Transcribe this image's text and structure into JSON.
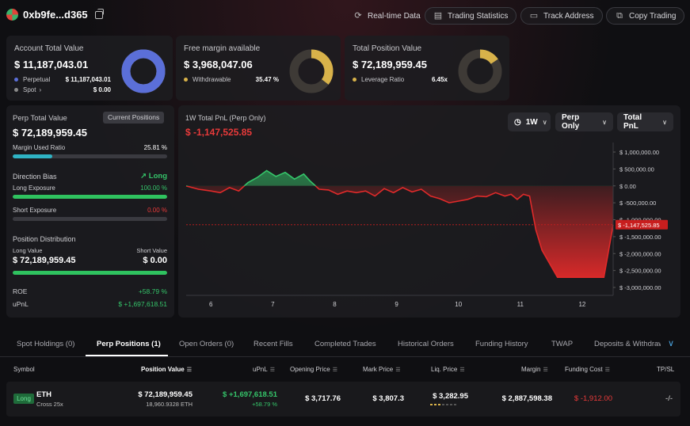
{
  "header": {
    "address": "0xb9fe...d365",
    "buttons": {
      "realtime": "Real-time Data",
      "trading_stats": "Trading Statistics",
      "track_address": "Track Address",
      "copy_trading": "Copy Trading"
    }
  },
  "account": {
    "title": "Account Total Value",
    "value": "$ 11,187,043.01",
    "perpetual_label": "Perpetual",
    "perpetual_value": "$ 11,187,043.01",
    "spot_label": "Spot",
    "spot_value": "$ 0.00",
    "perp_fraction": 1.0,
    "colors": {
      "perp": "#5b6fd8",
      "spot": "#8a8a8a"
    }
  },
  "margin": {
    "title": "Free margin available",
    "value": "$ 3,968,047.06",
    "withdrawable_label": "Withdrawable",
    "withdrawable_value": "35.47 %",
    "withdrawable_fraction": 0.3547,
    "colors": {
      "fill": "#d8b24a",
      "track": "#3e3a36"
    }
  },
  "position": {
    "title": "Total Position Value",
    "value": "$ 72,189,959.45",
    "leverage_label": "Leverage Ratio",
    "leverage_value": "6.45x",
    "ring_fraction": 0.155,
    "colors": {
      "fill": "#d8b24a",
      "track": "#3e3a36"
    }
  },
  "perp_panel": {
    "title": "Perp Total Value",
    "current_positions_btn": "Current Positions",
    "value": "$ 72,189,959.45",
    "margin_used_label": "Margin Used Ratio",
    "margin_used_value": "25.81 %",
    "margin_used_fraction": 0.2581,
    "direction_bias_label": "Direction Bias",
    "direction_bias_value": "Long",
    "long_exposure_label": "Long Exposure",
    "long_exposure_value": "100.00 %",
    "long_exposure_fraction": 1.0,
    "short_exposure_label": "Short Exposure",
    "short_exposure_value": "0.00 %",
    "short_exposure_fraction": 0.0,
    "distribution_label": "Position Distribution",
    "long_value_label": "Long Value",
    "short_value_label": "Short Value",
    "long_value": "$ 72,189,959.45",
    "short_value": "$ 0.00",
    "distribution_fraction": 1.0,
    "roe_label": "ROE",
    "roe_value": "+58.79 %",
    "upnl_label": "uPnL",
    "upnl_value": "$ +1,697,618.51",
    "colors": {
      "teal": "#2fb3c4",
      "green": "#2fc25f",
      "track": "#3a3a40"
    }
  },
  "chart_panel": {
    "title": "1W Total PnL (Perp Only)",
    "value": "$ -1,147,525.85",
    "dropdowns": {
      "period": "1W",
      "scope": "Perp Only",
      "metric": "Total PnL"
    }
  },
  "chart_data": {
    "type": "area",
    "x_ticks": [
      "6",
      "7",
      "8",
      "9",
      "10",
      "11",
      "12"
    ],
    "y_ticks": [
      "$ 1,000,000.00",
      "$ 500,000.00",
      "$ 0.00",
      "$ -500,000.00",
      "$ -1,000,000.00",
      "$ -1,500,000.00",
      "$ -2,000,000.00",
      "$ -2,500,000.00",
      "$ -3,000,000.00"
    ],
    "ylim": [
      -3000000,
      1000000
    ],
    "xlim": [
      5.6,
      12.5
    ],
    "current_label": "$ -1,147,525.85",
    "current_value": -1147525.85,
    "colors": {
      "positive": "#35c56a",
      "negative": "#e02a2a",
      "marker": "#c81e1e"
    },
    "x": [
      5.6,
      5.8,
      6.0,
      6.15,
      6.3,
      6.45,
      6.6,
      6.75,
      6.9,
      7.05,
      7.2,
      7.35,
      7.5,
      7.6,
      7.75,
      7.9,
      8.05,
      8.2,
      8.35,
      8.5,
      8.65,
      8.8,
      8.95,
      9.1,
      9.25,
      9.4,
      9.55,
      9.7,
      9.85,
      10.0,
      10.15,
      10.3,
      10.45,
      10.6,
      10.75,
      10.85,
      10.95,
      11.05,
      11.15,
      11.25,
      11.35,
      11.6,
      11.85,
      12.05,
      12.2,
      12.35,
      12.5
    ],
    "y": [
      0,
      -100000,
      -150000,
      -200000,
      -50000,
      -150000,
      100000,
      250000,
      450000,
      280000,
      400000,
      200000,
      350000,
      150000,
      -100000,
      -120000,
      -250000,
      -150000,
      -200000,
      -150000,
      -300000,
      -80000,
      -200000,
      -50000,
      -180000,
      -100000,
      -300000,
      -380000,
      -500000,
      -450000,
      -400000,
      -300000,
      -320000,
      -200000,
      -300000,
      -250000,
      -400000,
      -250000,
      -300000,
      -1300000,
      -1900000,
      -2700000,
      -2700000,
      -2700000,
      -2700000,
      -2700000,
      -1150000
    ]
  },
  "tabs": [
    "Spot Holdings (0)",
    "Perp Positions (1)",
    "Open Orders (0)",
    "Recent Fills",
    "Completed Trades",
    "Historical Orders",
    "Funding History",
    "TWAP",
    "Deposits & Withdraw"
  ],
  "table": {
    "headers": {
      "symbol": "Symbol",
      "position_value": "Position Value",
      "upnl": "uPnL",
      "opening_price": "Opening Price",
      "mark_price": "Mark Price",
      "liq_price": "Liq. Price",
      "margin": "Margin",
      "funding_cost": "Funding Cost",
      "tpsl": "TP/SL"
    },
    "row": {
      "side": "Long",
      "symbol": "ETH",
      "leverage": "Cross 25x",
      "position_value": "$ 72,189,959.45",
      "position_size": "18,960.9328 ETH",
      "upnl": "$ +1,697,618.51",
      "upnl_pct": "+58.79 %",
      "opening_price": "$ 3,717.76",
      "mark_price": "$ 3,807.3",
      "liq_price": "$ 3,282.95",
      "margin": "$ 2,887,598.38",
      "funding_cost": "$ -1,912.00",
      "tpsl": "-/-"
    }
  }
}
